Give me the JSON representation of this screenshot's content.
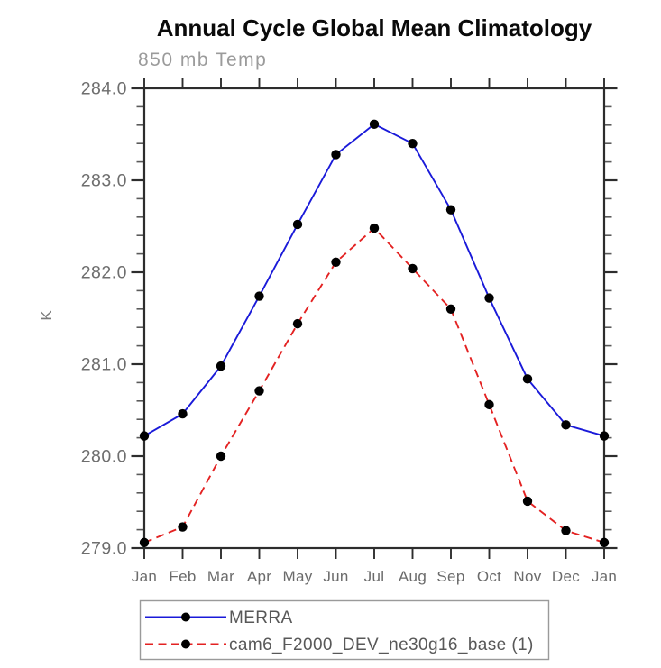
{
  "chart_data": {
    "type": "line",
    "title": "Annual Cycle Global Mean Climatology",
    "subtitle": "850 mb Temp",
    "ylabel": "K",
    "x_categories": [
      "Jan",
      "Feb",
      "Mar",
      "Apr",
      "May",
      "Jun",
      "Jul",
      "Aug",
      "Sep",
      "Oct",
      "Nov",
      "Dec",
      "Jan"
    ],
    "ylim": [
      279.0,
      284.0
    ],
    "ytick_major_step": 1.0,
    "ytick_minor_step": 0.2,
    "ytick_labels": [
      "279.0",
      "280.0",
      "281.0",
      "282.0",
      "283.0",
      "284.0"
    ],
    "grid": false,
    "legend_position": "bottom-left",
    "series": [
      {
        "name": "MERRA",
        "line_style": "solid",
        "color": "#1a1ad9",
        "marker": "circle",
        "marker_color": "#000000",
        "values": [
          280.22,
          280.46,
          280.98,
          281.74,
          282.52,
          283.28,
          283.61,
          283.4,
          282.68,
          281.72,
          280.84,
          280.34,
          280.22
        ]
      },
      {
        "name": "cam6_F2000_DEV_ne30g16_base (1)",
        "line_style": "dashed",
        "color": "#e32222",
        "marker": "circle",
        "marker_color": "#000000",
        "values": [
          279.06,
          279.23,
          280.0,
          280.71,
          281.44,
          282.11,
          282.48,
          282.04,
          281.6,
          280.56,
          279.51,
          279.19,
          279.06
        ]
      }
    ],
    "colors": {
      "axis": "#2d2d2d",
      "minor_tick": "#5a5a5a",
      "tick_label": "#6e6e6e",
      "subtitle": "#9b9b9b",
      "title": "#0a0a0a",
      "legend_border": "#9a9a9a",
      "legend_text": "#585858",
      "background": "#ffffff"
    }
  }
}
